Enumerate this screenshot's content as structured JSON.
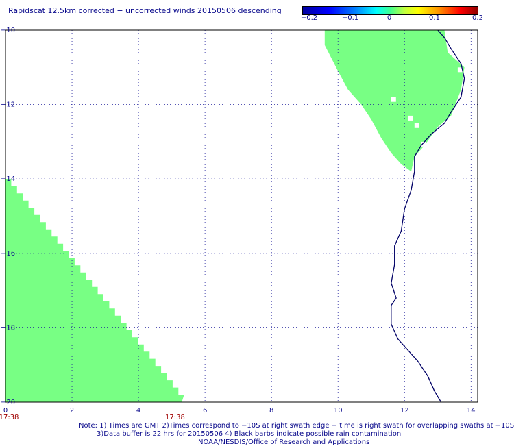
{
  "title": "Rapidscat 12.5km corrected − uncorrected winds 20150506 descending",
  "colorbar": {
    "ticks": [
      "−0.2",
      "−0.1",
      "0",
      "0.1",
      "0.2"
    ],
    "colors": [
      "#0000a0",
      "#0000ff",
      "#00ffff",
      "#80ff80",
      "#ffff00",
      "#ff8000",
      "#ff0000",
      "#900000"
    ]
  },
  "axes": {
    "x_ticks": [
      "0",
      "2",
      "4",
      "6",
      "8",
      "10",
      "12",
      "14"
    ],
    "y_ticks": [
      "−10",
      "−12",
      "−14",
      "−16",
      "−18",
      "−20"
    ],
    "xlim": [
      0,
      14.2
    ],
    "ylim": [
      -20,
      -10
    ]
  },
  "swath_times": [
    "17:38",
    "17:38"
  ],
  "swath_color": "#78ff84",
  "coast_color": "#000066",
  "notes": [
    "Note: 1) Times are GMT 2)Times correspond to −10S at right swath edge − time is right swath for overlapping swaths at −10S",
    "3)Data buffer is 22 hrs for 20150506 4) Black barbs indicate possible rain contamination",
    "NOAA/NESDIS/Office of Research and Applications"
  ]
}
